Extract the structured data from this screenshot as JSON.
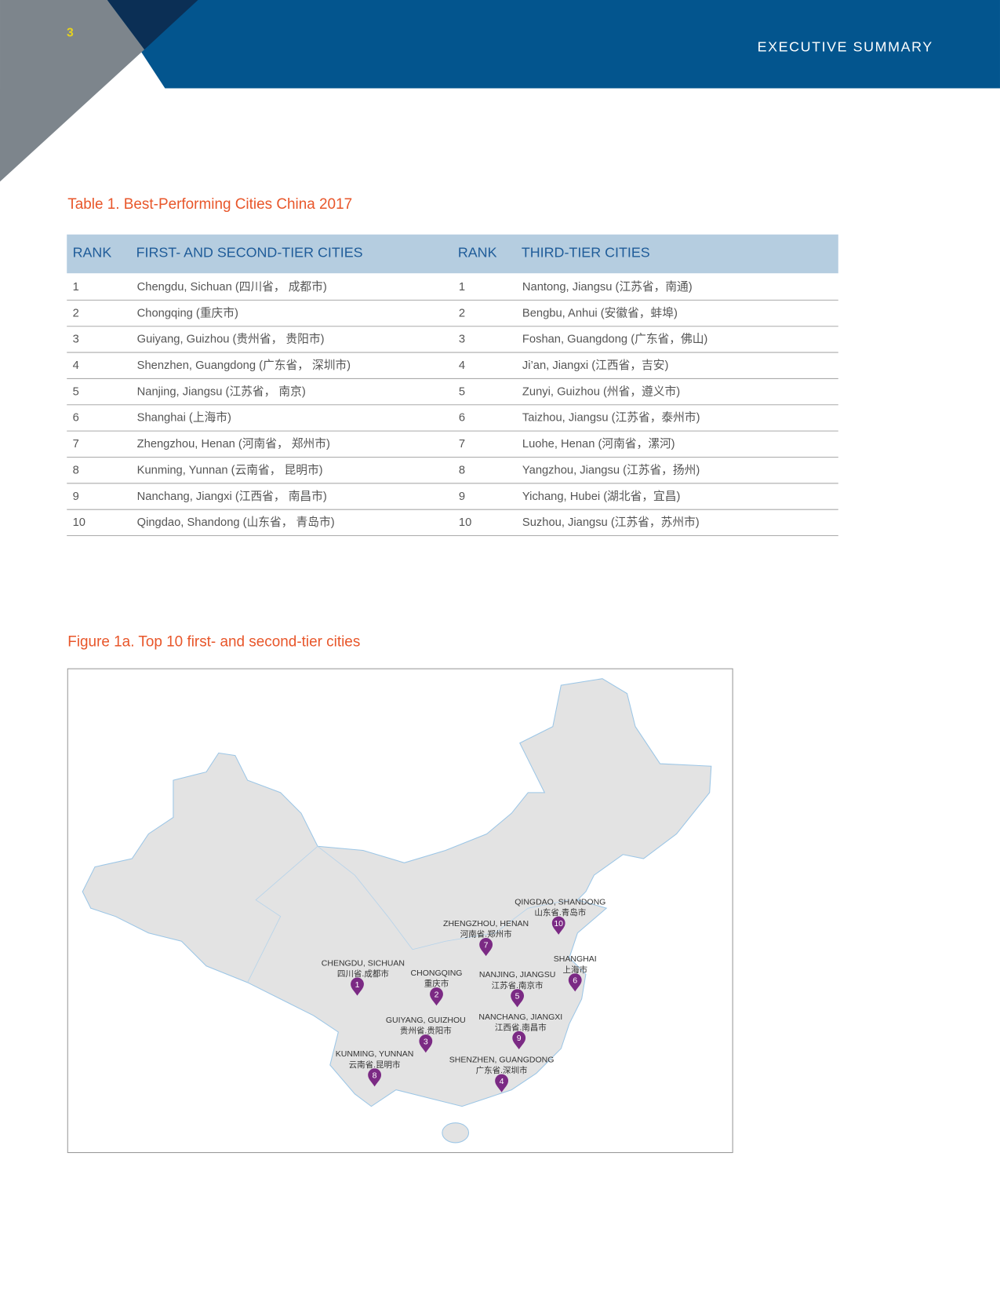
{
  "header": {
    "page_number": "3",
    "section": "EXECUTIVE SUMMARY"
  },
  "table": {
    "title": "Table 1. Best-Performing Cities China 2017",
    "columns": [
      "RANK",
      "FIRST- AND SECOND-TIER CITIES",
      "RANK",
      "THIRD-TIER CITIES"
    ],
    "rows": [
      [
        "1",
        "Chengdu, Sichuan (四川省，  成都市)",
        "1",
        "Nantong, Jiangsu (江苏省，南通)"
      ],
      [
        "2",
        "Chongqing (重庆市)",
        "2",
        "Bengbu, Anhui (安徽省，蚌埠)"
      ],
      [
        "3",
        "Guiyang, Guizhou (贵州省，  贵阳市)",
        "3",
        "Foshan, Guangdong (广东省，佛山)"
      ],
      [
        "4",
        "Shenzhen, Guangdong (广东省，  深圳市)",
        "4",
        "Ji’an, Jiangxi (江西省，吉安)"
      ],
      [
        "5",
        "Nanjing, Jiangsu (江苏省，  南京)",
        "5",
        "Zunyi, Guizhou (州省，遵义市)"
      ],
      [
        "6",
        "Shanghai (上海市)",
        "6",
        "Taizhou, Jiangsu (江苏省，泰州市)"
      ],
      [
        "7",
        "Zhengzhou, Henan (河南省，  郑州市)",
        "7",
        "Luohe, Henan (河南省，漯河)"
      ],
      [
        "8",
        "Kunming, Yunnan (云南省，  昆明市)",
        "8",
        "Yangzhou, Jiangsu (江苏省，扬州)"
      ],
      [
        "9",
        "Nanchang, Jiangxi (江西省，  南昌市)",
        "9",
        "Yichang, Hubei (湖北省，宜昌)"
      ],
      [
        "10",
        "Qingdao, Shandong (山东省，  青岛市)",
        "10",
        "Suzhou, Jiangsu (江苏省，苏州市)"
      ]
    ]
  },
  "figure": {
    "title": "Figure 1a. Top 10 first- and second-tier cities",
    "markers": [
      {
        "number": "1",
        "name": "CHENGDU, SICHUAN",
        "local": "四川省.成都市"
      },
      {
        "number": "2",
        "name": "CHONGQING",
        "local": "重庆市"
      },
      {
        "number": "3",
        "name": "GUIYANG, GUIZHOU",
        "local": "贵州省.贵阳市"
      },
      {
        "number": "4",
        "name": "SHENZHEN, GUANGDONG",
        "local": "广东省.深圳市"
      },
      {
        "number": "5",
        "name": "NANJING, JIANGSU",
        "local": "江苏省.南京市"
      },
      {
        "number": "6",
        "name": "SHANGHAI",
        "local": "上海市"
      },
      {
        "number": "7",
        "name": "ZHENGZHOU, HENAN",
        "local": "河南省.郑州市"
      },
      {
        "number": "8",
        "name": "KUNMING, YUNNAN",
        "local": "云南省.昆明市"
      },
      {
        "number": "9",
        "name": "NANCHANG, JIANGXI",
        "local": "江西省.南昌市"
      },
      {
        "number": "10",
        "name": "QINGDAO, SHANDONG",
        "local": "山东省.青岛市"
      }
    ]
  }
}
